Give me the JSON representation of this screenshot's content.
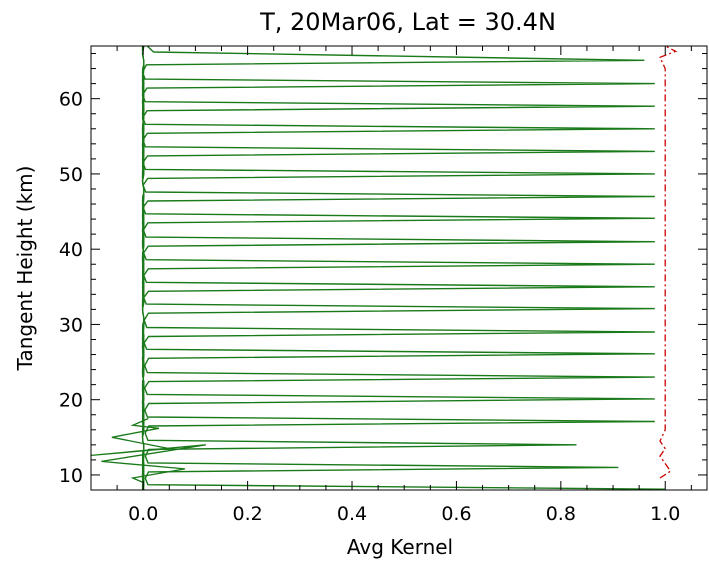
{
  "chart_data": {
    "type": "line",
    "title": "T, 20Mar06, Lat = 30.4N",
    "xlabel": "Avg Kernel",
    "ylabel": "Tangent Height (km)",
    "xlim": [
      -0.1,
      1.08
    ],
    "ylim": [
      8,
      67
    ],
    "x_ticks": [
      0.0,
      0.2,
      0.4,
      0.6,
      0.8,
      1.0
    ],
    "x_tick_labels": [
      "0.0",
      "0.2",
      "0.4",
      "0.6",
      "0.8",
      "1.0"
    ],
    "y_ticks": [
      10,
      20,
      30,
      40,
      50,
      60
    ],
    "y_tick_labels": [
      "10",
      "20",
      "30",
      "40",
      "50",
      "60"
    ],
    "grid": false,
    "series": [
      {
        "color": "#1a7a1a",
        "style": "solid",
        "peak_heights": [
          8.1,
          11.0,
          14.0,
          17.1,
          20.1,
          23.0,
          26.1,
          29.0,
          32.1,
          35.0,
          38.0,
          41.0,
          44.1,
          47.0,
          50.0,
          53.0,
          56.0,
          59.0,
          62.0,
          65.1
        ],
        "peak_values": [
          1.0,
          0.91,
          0.83,
          0.98,
          0.98,
          0.98,
          0.98,
          0.98,
          0.98,
          0.98,
          0.98,
          0.98,
          0.98,
          0.98,
          0.98,
          0.98,
          0.98,
          0.98,
          0.98,
          0.96
        ]
      },
      {
        "color": "#cc0000",
        "style": "dash-dot",
        "y": [
          9.6,
          10.5,
          12.5,
          13.5,
          14.5,
          16,
          64,
          65.5,
          66.3,
          67
        ],
        "x": [
          0.99,
          1.01,
          0.99,
          1.0,
          0.99,
          1.0,
          1.0,
          0.99,
          1.02,
          1.0
        ]
      }
    ]
  }
}
